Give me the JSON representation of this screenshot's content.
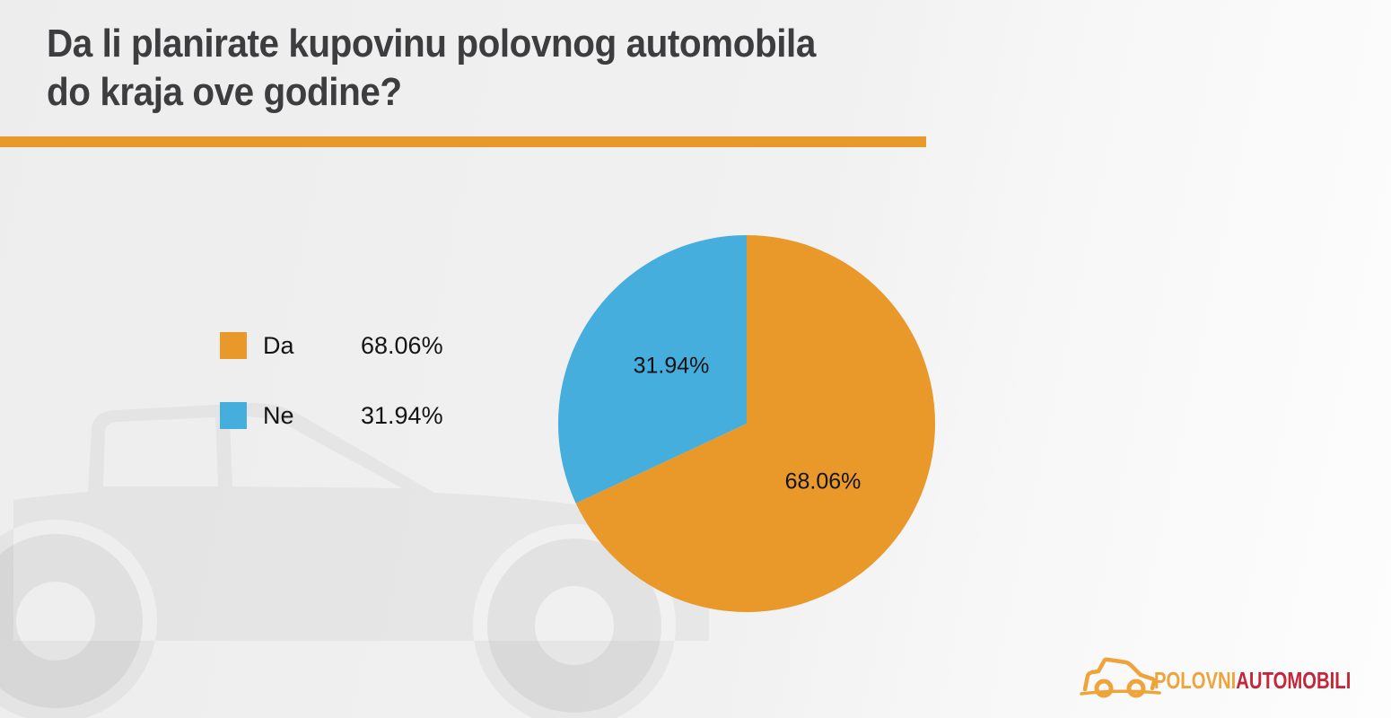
{
  "title": {
    "line1": "Da li planirate kupovinu polovnog automobila",
    "line2": "do kraja ove godine?"
  },
  "chart_data": {
    "type": "pie",
    "title": "Da li planirate kupovinu polovnog automobila do kraja ove godine?",
    "categories": [
      "Da",
      "Ne"
    ],
    "values": [
      68.06,
      31.94
    ],
    "labels": [
      "68.06%",
      "31.94%"
    ],
    "colors": [
      "#E8992A",
      "#45AEDD"
    ],
    "start_angle_deg": 0,
    "direction": "clockwise",
    "legend_position": "left-of-chart"
  },
  "accent": {
    "rule_color": "#E8992A"
  },
  "branding": {
    "part1": "POLOVNI",
    "part2": "AUTOMOBILI",
    "part1_color": "#EFA33B",
    "part2_color": "#C5273A"
  }
}
